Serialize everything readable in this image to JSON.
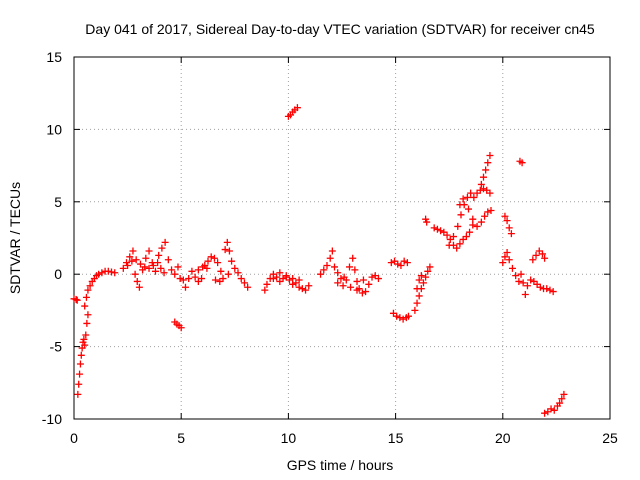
{
  "chart_data": {
    "type": "scatter",
    "title": "Day 041 of 2017, Sidereal Day-to-day VTEC variation (SDTVAR) for receiver cn45",
    "xlabel": "GPS time / hours",
    "ylabel": "SDTVAR / TECUs",
    "xlim": [
      0,
      25
    ],
    "ylim": [
      -10,
      15
    ],
    "xticks": [
      "0",
      "5",
      "10",
      "15",
      "20",
      "25"
    ],
    "yticks": [
      "-10",
      "-5",
      "0",
      "5",
      "10",
      "15"
    ],
    "grid": true,
    "marker": "plus",
    "color": "#ff0000",
    "series": [
      {
        "name": "SDTVAR",
        "points": [
          [
            0.0,
            -1.7
          ],
          [
            0.1,
            -1.75
          ],
          [
            0.15,
            -1.8
          ],
          [
            0.18,
            -8.3
          ],
          [
            0.22,
            -7.6
          ],
          [
            0.26,
            -6.9
          ],
          [
            0.3,
            -6.2
          ],
          [
            0.34,
            -5.6
          ],
          [
            0.38,
            -5.1
          ],
          [
            0.42,
            -4.7
          ],
          [
            0.46,
            -4.5
          ],
          [
            0.5,
            -4.9
          ],
          [
            0.55,
            -4.2
          ],
          [
            0.6,
            -3.4
          ],
          [
            0.65,
            -2.8
          ],
          [
            0.5,
            -2.2
          ],
          [
            0.58,
            -1.6
          ],
          [
            0.65,
            -1.1
          ],
          [
            0.75,
            -0.8
          ],
          [
            0.85,
            -0.5
          ],
          [
            0.95,
            -0.3
          ],
          [
            1.05,
            -0.1
          ],
          [
            1.15,
            0.0
          ],
          [
            1.3,
            0.1
          ],
          [
            1.45,
            0.2
          ],
          [
            1.6,
            0.2
          ],
          [
            1.75,
            0.15
          ],
          [
            1.9,
            0.1
          ],
          [
            2.3,
            0.4
          ],
          [
            2.45,
            0.8
          ],
          [
            2.6,
            1.2
          ],
          [
            2.75,
            1.6
          ],
          [
            2.85,
            0.0
          ],
          [
            2.95,
            -0.5
          ],
          [
            3.05,
            -0.9
          ],
          [
            3.2,
            0.3
          ],
          [
            3.35,
            1.1
          ],
          [
            3.5,
            1.6
          ],
          [
            3.65,
            0.8
          ],
          [
            3.8,
            0.2
          ],
          [
            3.95,
            1.3
          ],
          [
            4.1,
            1.8
          ],
          [
            4.25,
            2.2
          ],
          [
            4.4,
            1.0
          ],
          [
            4.55,
            0.3
          ],
          [
            4.7,
            0.0
          ],
          [
            4.85,
            0.5
          ],
          [
            4.95,
            -0.3
          ],
          [
            2.5,
            0.6
          ],
          [
            2.7,
            0.9
          ],
          [
            2.9,
            1.0
          ],
          [
            3.1,
            0.7
          ],
          [
            3.3,
            0.5
          ],
          [
            3.5,
            0.4
          ],
          [
            3.7,
            0.6
          ],
          [
            3.9,
            0.8
          ],
          [
            4.05,
            0.4
          ],
          [
            4.2,
            0.1
          ],
          [
            4.7,
            -3.3
          ],
          [
            4.8,
            -3.45
          ],
          [
            4.9,
            -3.55
          ],
          [
            5.0,
            -3.7
          ],
          [
            5.1,
            -0.4
          ],
          [
            5.2,
            -0.9
          ],
          [
            5.35,
            -0.3
          ],
          [
            5.5,
            0.2
          ],
          [
            5.65,
            -0.2
          ],
          [
            5.8,
            -0.5
          ],
          [
            5.95,
            -0.3
          ],
          [
            6.1,
            0.6
          ],
          [
            6.25,
            0.9
          ],
          [
            6.4,
            1.2
          ],
          [
            6.55,
            1.1
          ],
          [
            6.7,
            0.8
          ],
          [
            6.85,
            0.2
          ],
          [
            6.95,
            -0.3
          ],
          [
            7.05,
            1.7
          ],
          [
            7.15,
            2.2
          ],
          [
            7.25,
            1.6
          ],
          [
            7.35,
            0.9
          ],
          [
            7.5,
            0.4
          ],
          [
            7.65,
            0.1
          ],
          [
            7.8,
            -0.3
          ],
          [
            7.95,
            -0.6
          ],
          [
            8.1,
            -0.9
          ],
          [
            5.8,
            0.3
          ],
          [
            6.0,
            0.5
          ],
          [
            6.2,
            0.4
          ],
          [
            6.6,
            -0.4
          ],
          [
            6.8,
            -0.5
          ],
          [
            7.2,
            0.0
          ],
          [
            8.9,
            -1.1
          ],
          [
            9.0,
            -0.7
          ],
          [
            9.15,
            -0.3
          ],
          [
            9.3,
            0.0
          ],
          [
            9.45,
            -0.2
          ],
          [
            9.6,
            -0.5
          ],
          [
            9.75,
            -0.3
          ],
          [
            9.9,
            -0.1
          ],
          [
            10.05,
            -0.4
          ],
          [
            10.2,
            -0.7
          ],
          [
            10.35,
            -0.6
          ],
          [
            10.5,
            -0.9
          ],
          [
            10.65,
            -1.0
          ],
          [
            10.8,
            -1.1
          ],
          [
            10.95,
            -0.8
          ],
          [
            9.3,
            -0.3
          ],
          [
            9.6,
            0.1
          ],
          [
            9.9,
            -0.2
          ],
          [
            10.2,
            -0.3
          ],
          [
            10.5,
            -0.4
          ],
          [
            10.0,
            10.9
          ],
          [
            10.1,
            11.0
          ],
          [
            10.2,
            11.2
          ],
          [
            10.3,
            11.35
          ],
          [
            10.42,
            11.5
          ],
          [
            11.5,
            0.0
          ],
          [
            11.65,
            0.3
          ],
          [
            11.8,
            0.6
          ],
          [
            11.95,
            1.1
          ],
          [
            12.05,
            1.6
          ],
          [
            12.15,
            0.5
          ],
          [
            12.3,
            0.1
          ],
          [
            12.45,
            -0.3
          ],
          [
            12.55,
            -0.8
          ],
          [
            12.7,
            -0.4
          ],
          [
            12.85,
            0.5
          ],
          [
            13.0,
            1.1
          ],
          [
            13.1,
            0.3
          ],
          [
            13.2,
            -0.5
          ],
          [
            13.3,
            -1.0
          ],
          [
            13.45,
            -1.3
          ],
          [
            13.6,
            -1.2
          ],
          [
            13.75,
            -0.7
          ],
          [
            13.9,
            -0.2
          ],
          [
            14.05,
            -0.1
          ],
          [
            14.2,
            -0.3
          ],
          [
            12.3,
            -0.6
          ],
          [
            12.6,
            -0.2
          ],
          [
            12.9,
            -0.9
          ],
          [
            13.2,
            -1.1
          ],
          [
            13.5,
            -0.4
          ],
          [
            14.8,
            0.8
          ],
          [
            14.95,
            0.9
          ],
          [
            15.1,
            0.7
          ],
          [
            15.25,
            0.6
          ],
          [
            15.4,
            0.9
          ],
          [
            15.55,
            0.8
          ],
          [
            14.9,
            -2.7
          ],
          [
            15.05,
            -2.9
          ],
          [
            15.2,
            -3.0
          ],
          [
            15.35,
            -3.1
          ],
          [
            15.5,
            -3.0
          ],
          [
            15.6,
            -2.9
          ],
          [
            15.9,
            -2.5
          ],
          [
            16.0,
            -2.0
          ],
          [
            16.1,
            -1.5
          ],
          [
            16.2,
            -1.0
          ],
          [
            16.3,
            -0.6
          ],
          [
            16.4,
            -0.2
          ],
          [
            16.5,
            0.2
          ],
          [
            16.6,
            0.5
          ],
          [
            16.0,
            -1.0
          ],
          [
            16.1,
            -0.4
          ],
          [
            16.2,
            -0.1
          ],
          [
            16.4,
            3.8
          ],
          [
            16.45,
            3.6
          ],
          [
            16.8,
            3.2
          ],
          [
            16.95,
            3.1
          ],
          [
            17.1,
            3.0
          ],
          [
            17.25,
            2.9
          ],
          [
            17.4,
            2.7
          ],
          [
            17.55,
            2.4
          ],
          [
            17.7,
            2.0
          ],
          [
            17.85,
            1.8
          ],
          [
            18.0,
            2.1
          ],
          [
            18.15,
            2.4
          ],
          [
            18.3,
            2.6
          ],
          [
            18.45,
            2.9
          ],
          [
            18.6,
            3.4
          ],
          [
            17.5,
            2.0
          ],
          [
            17.7,
            2.6
          ],
          [
            17.9,
            3.3
          ],
          [
            18.05,
            4.1
          ],
          [
            18.2,
            4.8
          ],
          [
            18.35,
            5.3
          ],
          [
            18.5,
            5.6
          ],
          [
            18.65,
            5.3
          ],
          [
            18.8,
            5.6
          ],
          [
            18.95,
            5.8
          ],
          [
            19.1,
            5.9
          ],
          [
            19.25,
            5.8
          ],
          [
            19.4,
            5.6
          ],
          [
            18.0,
            4.8
          ],
          [
            18.15,
            5.2
          ],
          [
            18.4,
            4.5
          ],
          [
            18.6,
            3.8
          ],
          [
            18.8,
            3.3
          ],
          [
            19.0,
            3.6
          ],
          [
            19.15,
            4.0
          ],
          [
            19.3,
            4.3
          ],
          [
            19.45,
            4.4
          ],
          [
            19.0,
            6.2
          ],
          [
            19.1,
            6.7
          ],
          [
            19.2,
            7.2
          ],
          [
            19.3,
            7.7
          ],
          [
            19.4,
            8.2
          ],
          [
            20.8,
            7.8
          ],
          [
            20.9,
            7.7
          ],
          [
            20.0,
            0.8
          ],
          [
            20.1,
            1.2
          ],
          [
            20.2,
            1.5
          ],
          [
            20.3,
            1.0
          ],
          [
            20.45,
            0.4
          ],
          [
            20.6,
            -0.1
          ],
          [
            20.75,
            -0.5
          ],
          [
            20.85,
            0.0
          ],
          [
            20.95,
            -0.6
          ],
          [
            21.05,
            -1.4
          ],
          [
            21.15,
            -0.8
          ],
          [
            21.3,
            -0.4
          ],
          [
            21.45,
            -0.5
          ],
          [
            21.6,
            -0.7
          ],
          [
            21.75,
            -0.9
          ],
          [
            21.9,
            -1.0
          ],
          [
            22.05,
            -1.0
          ],
          [
            22.2,
            -1.1
          ],
          [
            22.35,
            -1.2
          ],
          [
            20.1,
            4.0
          ],
          [
            20.2,
            3.7
          ],
          [
            20.3,
            3.2
          ],
          [
            20.4,
            2.8
          ],
          [
            21.4,
            1.0
          ],
          [
            21.55,
            1.3
          ],
          [
            21.7,
            1.6
          ],
          [
            21.85,
            1.4
          ],
          [
            21.95,
            1.1
          ],
          [
            21.95,
            -9.6
          ],
          [
            22.1,
            -9.5
          ],
          [
            22.25,
            -9.3
          ],
          [
            22.4,
            -9.4
          ],
          [
            22.55,
            -9.1
          ],
          [
            22.65,
            -8.9
          ],
          [
            22.75,
            -8.6
          ],
          [
            22.85,
            -8.3
          ]
        ]
      }
    ]
  }
}
